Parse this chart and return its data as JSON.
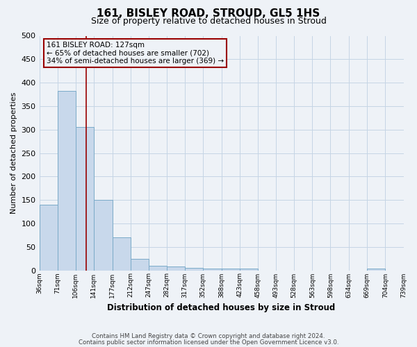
{
  "title_line1": "161, BISLEY ROAD, STROUD, GL5 1HS",
  "title_line2": "Size of property relative to detached houses in Stroud",
  "xlabel": "Distribution of detached houses by size in Stroud",
  "ylabel": "Number of detached properties",
  "bar_lefts": [
    36,
    71,
    106,
    141,
    177,
    212,
    247,
    282,
    317,
    352,
    388,
    423,
    458,
    493,
    528,
    563,
    598,
    634,
    669,
    704
  ],
  "bar_rights": [
    71,
    106,
    141,
    177,
    212,
    247,
    282,
    317,
    352,
    388,
    423,
    458,
    493,
    528,
    563,
    598,
    634,
    669,
    704,
    739
  ],
  "bar_heights": [
    140,
    383,
    305,
    150,
    70,
    25,
    10,
    8,
    5,
    3,
    3,
    3,
    0,
    0,
    0,
    0,
    0,
    0,
    3,
    0
  ],
  "bar_color": "#c8d8eb",
  "bar_edgecolor": "#7aaac8",
  "grid_color": "#c5d5e5",
  "property_size": 127,
  "vline_color": "#990000",
  "annotation_box_edgecolor": "#990000",
  "annotation_text_line1": "161 BISLEY ROAD: 127sqm",
  "annotation_text_line2": "← 65% of detached houses are smaller (702)",
  "annotation_text_line3": "34% of semi-detached houses are larger (369) →",
  "ylim": [
    0,
    500
  ],
  "xlim": [
    36,
    739
  ],
  "tick_positions": [
    36,
    71,
    106,
    141,
    177,
    212,
    247,
    282,
    317,
    352,
    388,
    423,
    458,
    493,
    528,
    563,
    598,
    634,
    669,
    704,
    739
  ],
  "tick_labels": [
    "36sqm",
    "71sqm",
    "106sqm",
    "141sqm",
    "177sqm",
    "212sqm",
    "247sqm",
    "282sqm",
    "317sqm",
    "352sqm",
    "388sqm",
    "423sqm",
    "458sqm",
    "493sqm",
    "528sqm",
    "563sqm",
    "598sqm",
    "634sqm",
    "669sqm",
    "704sqm",
    "739sqm"
  ],
  "footer_line1": "Contains HM Land Registry data © Crown copyright and database right 2024.",
  "footer_line2": "Contains public sector information licensed under the Open Government Licence v3.0.",
  "bg_color": "#eef2f7"
}
